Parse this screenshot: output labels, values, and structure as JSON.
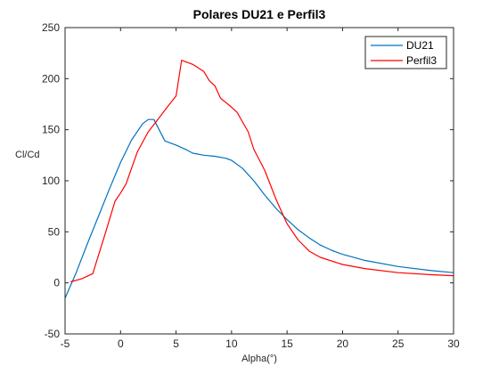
{
  "chart_data": {
    "type": "line",
    "title": "Polares DU21 e Perfil3",
    "xlabel": "Alpha(°)",
    "ylabel": "Cl/Cd",
    "xlim": [
      -5,
      30
    ],
    "ylim": [
      -50,
      250
    ],
    "xticks": [
      "-5",
      "0",
      "5",
      "10",
      "15",
      "20",
      "25",
      "30"
    ],
    "yticks": [
      "-50",
      "0",
      "50",
      "100",
      "150",
      "200",
      "250"
    ],
    "grid": false,
    "legend_position": "top-right",
    "series": [
      {
        "name": "DU21",
        "color": "#0072BD",
        "points": [
          [
            -5,
            -15
          ],
          [
            -4,
            10
          ],
          [
            -3,
            38
          ],
          [
            -2,
            65
          ],
          [
            -1,
            92
          ],
          [
            0,
            118
          ],
          [
            1,
            140
          ],
          [
            2,
            156
          ],
          [
            2.5,
            160
          ],
          [
            3,
            160
          ],
          [
            4,
            139
          ],
          [
            5,
            135
          ],
          [
            6,
            130
          ],
          [
            6.5,
            127
          ],
          [
            7.5,
            125
          ],
          [
            8.5,
            124
          ],
          [
            9.5,
            122
          ],
          [
            10,
            120
          ],
          [
            11,
            112
          ],
          [
            12,
            100
          ],
          [
            13,
            86
          ],
          [
            14,
            73
          ],
          [
            15,
            62
          ],
          [
            16,
            52
          ],
          [
            17,
            44
          ],
          [
            18,
            37
          ],
          [
            19,
            32
          ],
          [
            20,
            28
          ],
          [
            22,
            22
          ],
          [
            25,
            16
          ],
          [
            28,
            12
          ],
          [
            30,
            10
          ]
        ]
      },
      {
        "name": "Perfil3",
        "color": "#FF0000",
        "points": [
          [
            -4.5,
            1
          ],
          [
            -3.5,
            4
          ],
          [
            -2.5,
            9
          ],
          [
            -1.5,
            44
          ],
          [
            -0.5,
            80
          ],
          [
            0,
            88
          ],
          [
            0.5,
            97
          ],
          [
            1.5,
            128
          ],
          [
            2.5,
            148
          ],
          [
            3.5,
            162
          ],
          [
            4.2,
            172
          ],
          [
            5,
            183
          ],
          [
            5.5,
            218
          ],
          [
            6.5,
            214
          ],
          [
            7.5,
            207
          ],
          [
            8,
            198
          ],
          [
            8.5,
            193
          ],
          [
            9,
            181
          ],
          [
            10,
            172
          ],
          [
            10.5,
            167
          ],
          [
            11.5,
            148
          ],
          [
            12,
            131
          ],
          [
            13,
            110
          ],
          [
            14,
            82
          ],
          [
            15,
            58
          ],
          [
            16,
            42
          ],
          [
            17,
            31
          ],
          [
            18,
            25
          ],
          [
            20,
            18
          ],
          [
            22,
            14
          ],
          [
            25,
            10
          ],
          [
            28,
            8
          ],
          [
            30,
            7
          ]
        ]
      }
    ]
  }
}
